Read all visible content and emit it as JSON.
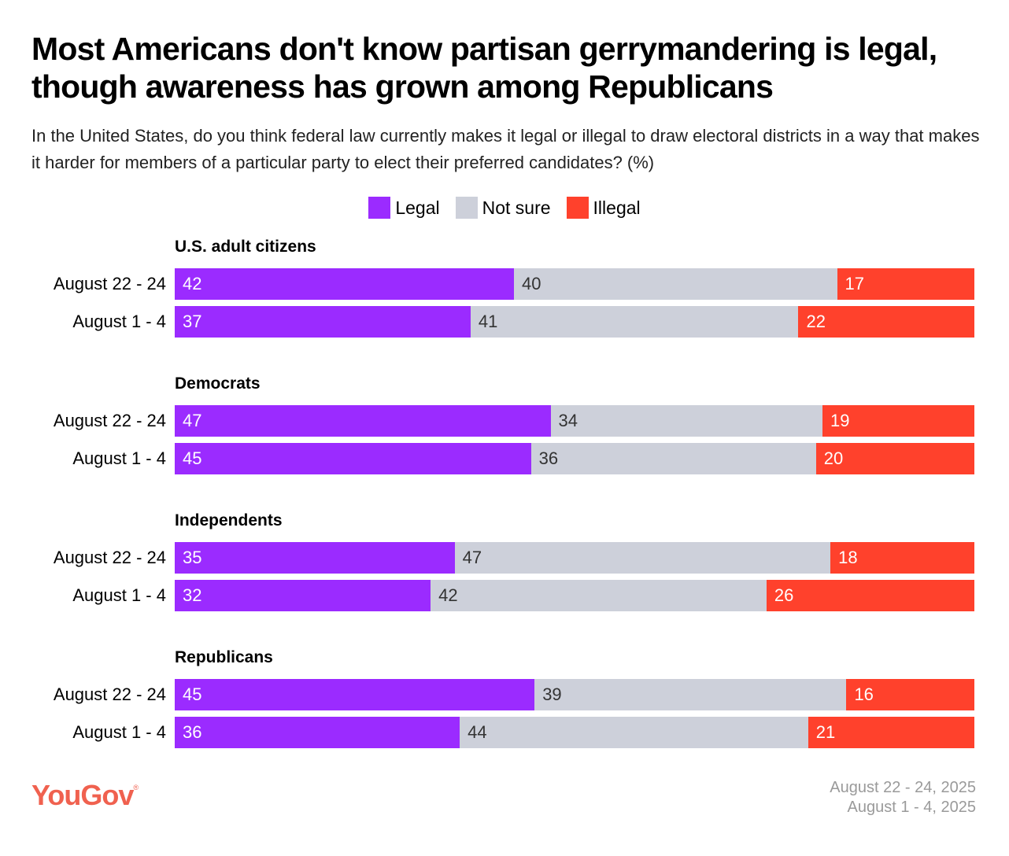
{
  "title": "Most Americans don't know partisan gerrymandering is legal, though awareness has grown among Republicans",
  "subtitle": "In the United States, do you think federal law currently makes it legal or illegal to draw electoral districts in a way that makes it harder for members of a particular party to elect their preferred candidates? (%)",
  "chart_data": {
    "type": "bar",
    "orientation": "horizontal-stacked",
    "legend": {
      "placement": "top-center",
      "entries": [
        {
          "name": "Legal",
          "color": "#9b2bff"
        },
        {
          "name": "Not sure",
          "color": "#cdd0da"
        },
        {
          "name": "Illegal",
          "color": "#ff412c"
        }
      ]
    },
    "groups": [
      {
        "name": "U.S. adult citizens",
        "rows": [
          {
            "label": "August 22 - 24",
            "values": [
              42,
              40,
              17
            ]
          },
          {
            "label": "August 1 - 4",
            "values": [
              37,
              41,
              22
            ]
          }
        ]
      },
      {
        "name": "Democrats",
        "rows": [
          {
            "label": "August 22 - 24",
            "values": [
              47,
              34,
              19
            ]
          },
          {
            "label": "August 1 - 4",
            "values": [
              45,
              36,
              20
            ]
          }
        ]
      },
      {
        "name": "Independents",
        "rows": [
          {
            "label": "August 22 - 24",
            "values": [
              35,
              47,
              18
            ]
          },
          {
            "label": "August 1 - 4",
            "values": [
              32,
              42,
              26
            ]
          }
        ]
      },
      {
        "name": "Republicans",
        "rows": [
          {
            "label": "August 22 - 24",
            "values": [
              45,
              39,
              16
            ]
          },
          {
            "label": "August 1 - 4",
            "values": [
              36,
              44,
              21
            ]
          }
        ]
      }
    ]
  },
  "footer": {
    "logo": "YouGov",
    "dates": [
      "August 22 - 24, 2025",
      "August 1 - 4, 2025"
    ]
  }
}
